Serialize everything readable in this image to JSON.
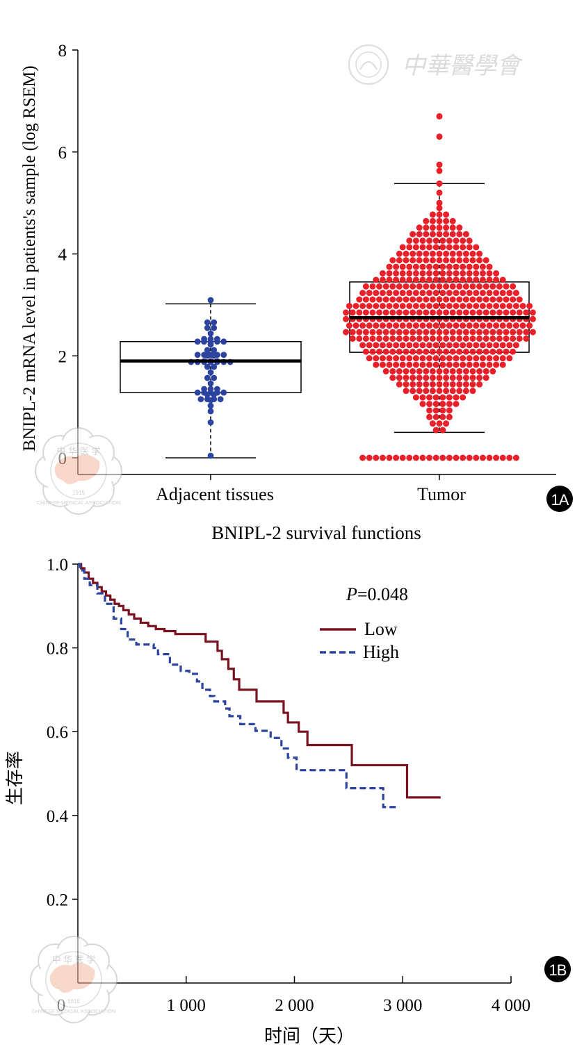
{
  "chart_data": [
    {
      "id": "1A",
      "type": "box_dot",
      "panel_label": "1A",
      "ylabel": "BNIPL-2 mRNA level in patients's sample (log RSEM)",
      "ylim": [
        0,
        8
      ],
      "yticks": [
        "0",
        "2",
        "4",
        "6",
        "8"
      ],
      "categories": [
        "Adjacent tissues",
        "Tumor"
      ],
      "boxes": [
        {
          "name": "Adjacent tissues",
          "whisker_low": 0,
          "q1": 1.28,
          "median": 1.9,
          "q3": 2.28,
          "whisker_high": 3.02,
          "color": "#2c43a0"
        },
        {
          "name": "Tumor",
          "whisker_low": 0.5,
          "q1": 2.07,
          "median": 2.75,
          "q3": 3.45,
          "whisker_high": 5.38,
          "color": "#e8202a"
        }
      ],
      "adjacent_points_approx": [
        3.07,
        2.68,
        2.62,
        2.55,
        2.5,
        2.42,
        2.38,
        2.3,
        2.28,
        2.2,
        2.15,
        2.1,
        2.02,
        1.97,
        1.92,
        1.9,
        1.87,
        1.82,
        1.75,
        1.68,
        1.62,
        1.55,
        1.48,
        1.4,
        1.35,
        1.3,
        1.27,
        1.2,
        1.15,
        1.05,
        0.95,
        0.68,
        0.0
      ],
      "tumor_outliers_approx": [
        6.7,
        6.3,
        5.75,
        5.63,
        5.38,
        5.2,
        5.0
      ],
      "tumor_zero_count_approx": 24
    },
    {
      "id": "1B",
      "type": "line",
      "panel_label": "1B",
      "title": "BNIPL-2 survival functions",
      "xlabel": "时间（天）",
      "ylabel": "生存率",
      "xlim": [
        0,
        4000
      ],
      "ylim": [
        0,
        1.0
      ],
      "xticks": [
        {
          "value": 0,
          "label": "0"
        },
        {
          "value": 1000,
          "label": "1 000"
        },
        {
          "value": 2000,
          "label": "2 000"
        },
        {
          "value": 3000,
          "label": "3 000"
        },
        {
          "value": 4000,
          "label": "4 000"
        }
      ],
      "yticks": [
        {
          "value": 0.2,
          "label": "0.2"
        },
        {
          "value": 0.4,
          "label": "0.4"
        },
        {
          "value": 0.6,
          "label": "0.6"
        },
        {
          "value": 0.8,
          "label": "0.8"
        },
        {
          "value": 1.0,
          "label": "1.0"
        }
      ],
      "p_value_prefix": "P",
      "p_value_text": "=0.048",
      "series": [
        {
          "name": "Low",
          "color": "#7a1220",
          "dash": "solid",
          "steps": [
            [
              0,
              1.0
            ],
            [
              30,
              0.99
            ],
            [
              60,
              0.98
            ],
            [
              100,
              0.965
            ],
            [
              140,
              0.955
            ],
            [
              180,
              0.945
            ],
            [
              220,
              0.935
            ],
            [
              260,
              0.925
            ],
            [
              300,
              0.915
            ],
            [
              340,
              0.905
            ],
            [
              380,
              0.9
            ],
            [
              420,
              0.89
            ],
            [
              470,
              0.88
            ],
            [
              520,
              0.87
            ],
            [
              580,
              0.86
            ],
            [
              650,
              0.852
            ],
            [
              720,
              0.845
            ],
            [
              800,
              0.84
            ],
            [
              900,
              0.833
            ],
            [
              1000,
              0.833
            ],
            [
              1150,
              0.833
            ],
            [
              1180,
              0.815
            ],
            [
              1290,
              0.793
            ],
            [
              1330,
              0.773
            ],
            [
              1390,
              0.75
            ],
            [
              1440,
              0.725
            ],
            [
              1490,
              0.7
            ],
            [
              1650,
              0.672
            ],
            [
              1900,
              0.645
            ],
            [
              1940,
              0.622
            ],
            [
              2040,
              0.6
            ],
            [
              2120,
              0.568
            ],
            [
              2530,
              0.52
            ],
            [
              3040,
              0.443
            ],
            [
              3350,
              0.443
            ]
          ]
        },
        {
          "name": "High",
          "color": "#2c43a0",
          "dash": "dashed",
          "steps": [
            [
              0,
              1.0
            ],
            [
              20,
              0.985
            ],
            [
              60,
              0.965
            ],
            [
              110,
              0.95
            ],
            [
              180,
              0.93
            ],
            [
              250,
              0.905
            ],
            [
              330,
              0.87
            ],
            [
              400,
              0.845
            ],
            [
              460,
              0.82
            ],
            [
              540,
              0.808
            ],
            [
              700,
              0.8
            ],
            [
              740,
              0.785
            ],
            [
              850,
              0.76
            ],
            [
              950,
              0.745
            ],
            [
              1030,
              0.738
            ],
            [
              1100,
              0.72
            ],
            [
              1150,
              0.7
            ],
            [
              1220,
              0.685
            ],
            [
              1260,
              0.672
            ],
            [
              1360,
              0.655
            ],
            [
              1400,
              0.637
            ],
            [
              1500,
              0.618
            ],
            [
              1640,
              0.602
            ],
            [
              1780,
              0.585
            ],
            [
              1880,
              0.56
            ],
            [
              1940,
              0.538
            ],
            [
              2020,
              0.508
            ],
            [
              2480,
              0.465
            ],
            [
              2800,
              0.465
            ],
            [
              2820,
              0.42
            ],
            [
              2940,
              0.42
            ]
          ]
        }
      ]
    }
  ],
  "decor": {
    "watermark_text": "中華醫學會",
    "seal_top_text": "中 华 医 学",
    "seal_ring_text": "CHINESE MEDICAL ASSOCIATION",
    "seal_year": "1915"
  }
}
